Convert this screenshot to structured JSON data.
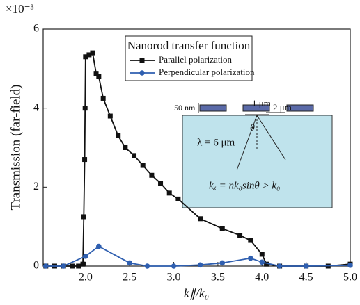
{
  "chart_data": {
    "type": "line",
    "ylabel": "Transmission (far-field)",
    "xlabel": "k∥/k₀",
    "y_multiplier": "×10⁻³",
    "legend_title": "Nanorod transfer function",
    "xlim": [
      1.52,
      5.0
    ],
    "xticks": [
      2.0,
      2.5,
      3.0,
      3.5,
      4.0,
      4.5,
      5.0
    ],
    "xtick_labels": [
      "2.0",
      "2.5",
      "3.0",
      "3.5",
      "4.0",
      "4.5",
      "5.0"
    ],
    "ylim": [
      0,
      6
    ],
    "yticks": [
      0,
      2,
      4,
      6
    ],
    "series": [
      {
        "name": "Parallel polarization",
        "color": "#111111",
        "marker": "square",
        "x": [
          1.55,
          1.65,
          1.75,
          1.85,
          1.92,
          1.97,
          1.98,
          1.99,
          1.995,
          2.0,
          2.04,
          2.08,
          2.12,
          2.15,
          2.2,
          2.28,
          2.37,
          2.45,
          2.55,
          2.65,
          2.75,
          2.85,
          2.95,
          3.05,
          3.3,
          3.55,
          3.75,
          3.87,
          4.0,
          4.05,
          4.2,
          4.5,
          4.75,
          5.0
        ],
        "values": [
          0,
          0,
          0,
          0,
          0,
          0.05,
          1.25,
          2.7,
          4.0,
          5.3,
          5.35,
          5.4,
          4.88,
          4.8,
          4.25,
          3.8,
          3.3,
          3.0,
          2.8,
          2.55,
          2.3,
          2.1,
          1.85,
          1.7,
          1.2,
          0.95,
          0.78,
          0.65,
          0.3,
          0.05,
          0,
          0,
          0,
          0.05
        ]
      },
      {
        "name": "Perpendicular polarization",
        "color": "#2f5fb0",
        "marker": "circle",
        "x": [
          1.55,
          1.75,
          2.0,
          2.15,
          2.5,
          2.7,
          3.0,
          3.3,
          3.55,
          3.87,
          4.0,
          4.2,
          4.5,
          5.0
        ],
        "values": [
          0,
          0,
          0.25,
          0.5,
          0.08,
          0,
          0,
          0.03,
          0.08,
          0.2,
          0.1,
          0,
          0,
          0.02
        ]
      }
    ],
    "annotations": {
      "pitch": "1 μm",
      "length": "2 μm",
      "thickness": "50 nm",
      "wavelength": "λ = 6 μm",
      "angle": "θ",
      "relation": "kₓ = nk₀sinθ > k₀"
    }
  }
}
